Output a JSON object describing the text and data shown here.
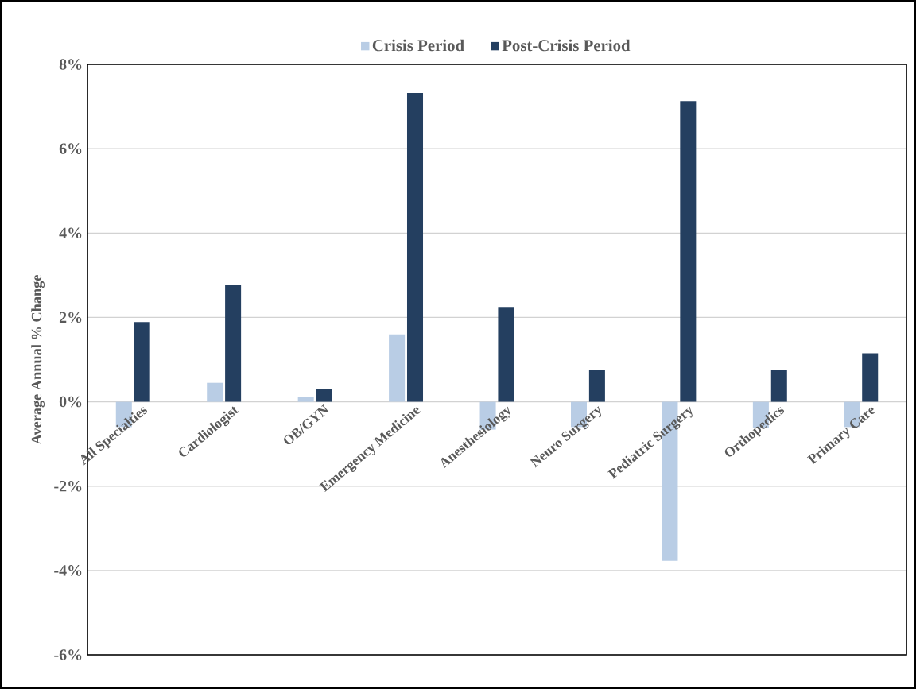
{
  "chart_data": {
    "type": "bar",
    "ylabel": "Average Annual % Change",
    "categories": [
      "All Specialties",
      "Cardiologist",
      "OB/GYN",
      "Emergency Medicine",
      "Anesthesiology",
      "Neuro Surgery",
      "Pediatric Surgery",
      "Orthopedics",
      "Primary Care"
    ],
    "series": [
      {
        "name": "Crisis Period",
        "color": "#b9cde5",
        "values": [
          -0.6,
          0.45,
          0.11,
          1.6,
          -0.66,
          -0.6,
          -3.77,
          -0.62,
          -0.6
        ]
      },
      {
        "name": "Post-Crisis Period",
        "color": "#243f60",
        "values": [
          1.89,
          2.77,
          0.3,
          7.32,
          2.25,
          0.75,
          7.13,
          0.75,
          1.15
        ]
      }
    ],
    "ylim": [
      -6,
      8
    ],
    "yticks": [
      {
        "value": -6,
        "label": "-6%"
      },
      {
        "value": -4,
        "label": "-4%"
      },
      {
        "value": -2,
        "label": "-2%"
      },
      {
        "value": 0,
        "label": "0%"
      },
      {
        "value": 2,
        "label": "2%"
      },
      {
        "value": 4,
        "label": "4%"
      },
      {
        "value": 6,
        "label": "6%"
      },
      {
        "value": 8,
        "label": "8%"
      }
    ],
    "grid": "y",
    "legend": "top"
  }
}
